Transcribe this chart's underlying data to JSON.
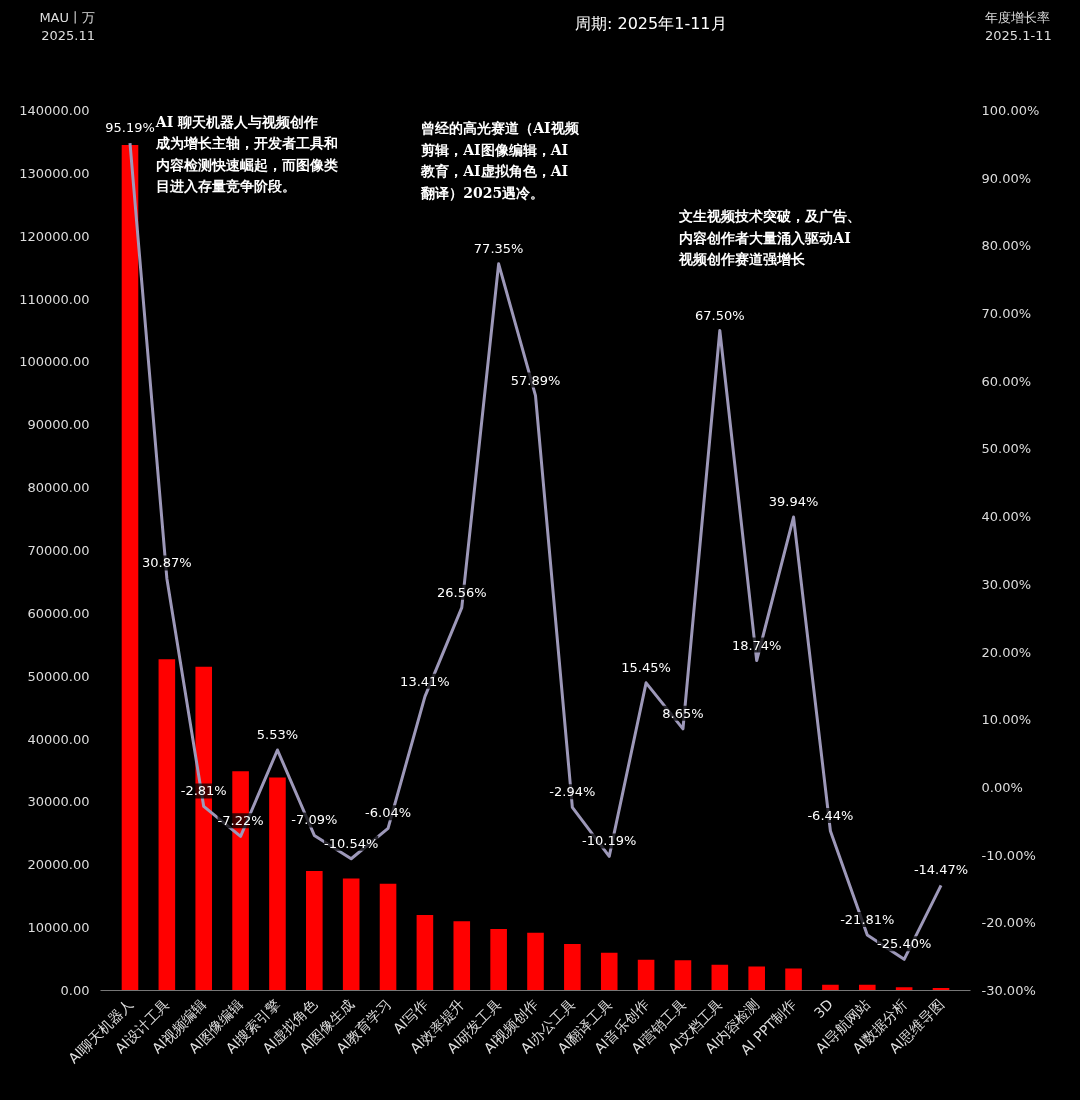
{
  "chart_data": {
    "type": "bar",
    "title": "周期: 2025年1-11月",
    "ylabel": "MAU丨万\n2025.11",
    "y2label": "年度增长率\n2025.1-11",
    "categories": [
      "AI聊天机器人",
      "AI设计工具",
      "AI视频编辑",
      "AI图像编辑",
      "AI搜索引擎",
      "AI虚拟角色",
      "AI图像生成",
      "AI教育学习",
      "AI写作",
      "AI效率提升",
      "AI研发工具",
      "AI视频创作",
      "AI办公工具",
      "AI翻译工具",
      "AI音乐创作",
      "AI营销工具",
      "AI文档工具",
      "AI内容检测",
      "AI PPT制作",
      "3D",
      "AI导航网站",
      "AI数据分析",
      "AI思维导图"
    ],
    "series": [
      {
        "type": "bar",
        "color": "#ff0000",
        "values": [
          134500,
          52700,
          51500,
          34900,
          33900,
          19000,
          17800,
          17000,
          12000,
          11000,
          9800,
          9200,
          7400,
          6000,
          4900,
          4800,
          4100,
          3800,
          3500,
          900,
          900,
          500,
          400
        ]
      },
      {
        "type": "line",
        "axis": "y2",
        "color": "#9d98b9",
        "values": [
          95.19,
          30.87,
          -2.81,
          -7.22,
          5.53,
          -7.09,
          -10.54,
          -6.04,
          13.41,
          26.56,
          77.35,
          57.89,
          -2.94,
          -10.19,
          15.45,
          8.65,
          67.5,
          18.74,
          39.94,
          -6.44,
          -21.81,
          -25.4,
          -14.47
        ],
        "value_labels": [
          "95.19%",
          "30.87%",
          "-2.81%",
          "-7.22%",
          "5.53%",
          "-7.09%",
          "-10.54%",
          "-6.04%",
          "13.41%",
          "26.56%",
          "77.35%",
          "57.89%",
          "-2.94%",
          "-10.19%",
          "15.45%",
          "8.65%",
          "67.50%",
          "18.74%",
          "39.94%",
          "-6.44%",
          "-21.81%",
          "-25.40%",
          "-14.47%"
        ]
      }
    ],
    "ylim": [
      0,
      140000
    ],
    "yticks": [
      {
        "value": 0,
        "label": "0.00"
      },
      {
        "value": 10000,
        "label": "10000.00"
      },
      {
        "value": 20000,
        "label": "20000.00"
      },
      {
        "value": 30000,
        "label": "30000.00"
      },
      {
        "value": 40000,
        "label": "40000.00"
      },
      {
        "value": 50000,
        "label": "50000.00"
      },
      {
        "value": 60000,
        "label": "60000.00"
      },
      {
        "value": 70000,
        "label": "70000.00"
      },
      {
        "value": 80000,
        "label": "80000.00"
      },
      {
        "value": 90000,
        "label": "90000.00"
      },
      {
        "value": 100000,
        "label": "100000.00"
      },
      {
        "value": 110000,
        "label": "110000.00"
      },
      {
        "value": 120000,
        "label": "120000.00"
      },
      {
        "value": 130000,
        "label": "130000.00"
      },
      {
        "value": 140000,
        "label": "140000.00"
      }
    ],
    "y2lim": [
      -30,
      100
    ],
    "y2ticks": [
      {
        "value": -30,
        "label": "-30.00%"
      },
      {
        "value": -20,
        "label": "-20.00%"
      },
      {
        "value": -10,
        "label": "-10.00%"
      },
      {
        "value": 0,
        "label": "0.00%"
      },
      {
        "value": 10,
        "label": "10.00%"
      },
      {
        "value": 20,
        "label": "20.00%"
      },
      {
        "value": 30,
        "label": "30.00%"
      },
      {
        "value": 40,
        "label": "40.00%"
      },
      {
        "value": 50,
        "label": "50.00%"
      },
      {
        "value": 60,
        "label": "60.00%"
      },
      {
        "value": 70,
        "label": "70.00%"
      },
      {
        "value": 80,
        "label": "80.00%"
      },
      {
        "value": 90,
        "label": "90.00%"
      },
      {
        "value": 100,
        "label": "100.00%"
      }
    ],
    "annotations": [
      "AI 聊天机器人与视频创作成为增长主轴，开发者工具和内容检测快速崛起，而图像类目进入存量竞争阶段。",
      "曾经的高光赛道（AI视频剪辑，AI图像编辑，AI教育，AI虚拟角色，AI翻译）2025遇冷。",
      "文生视频技术突破，及广告、内容创作者大量涌入驱动AI视频创作赛道强增长"
    ]
  }
}
